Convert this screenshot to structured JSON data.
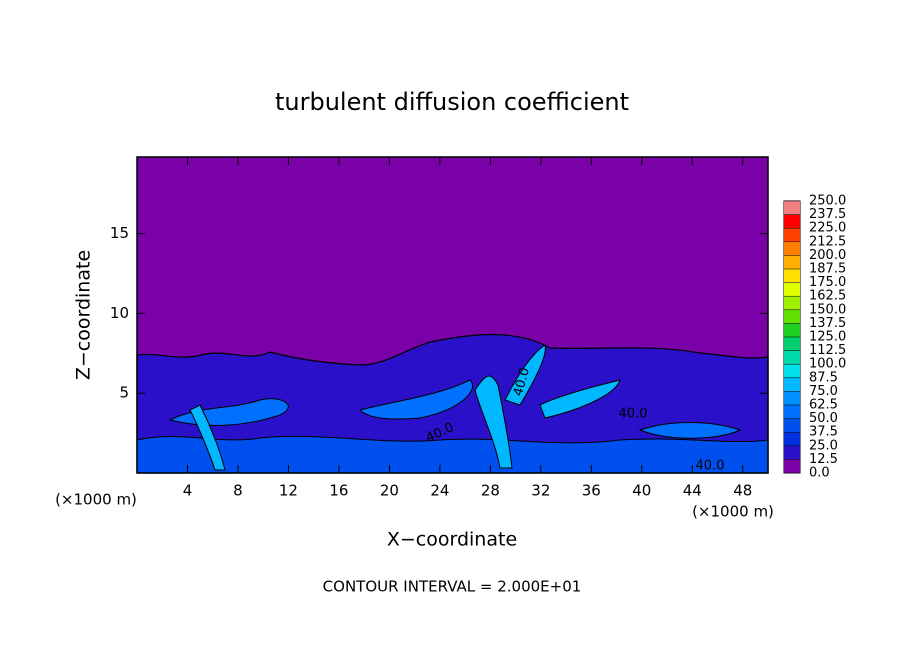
{
  "chart_data": {
    "type": "contour",
    "title": "turbulent diffusion coefficient",
    "xlabel": "X−coordinate",
    "ylabel": "Z−coordinate",
    "xunit": "(×1000 m)",
    "yunit": "(×1000 m)",
    "note": "CONTOUR INTERVAL = 2.000E+01",
    "xlim": [
      0,
      50
    ],
    "ylim": [
      0,
      19.8
    ],
    "xticks": [
      4,
      8,
      12,
      16,
      20,
      24,
      28,
      32,
      36,
      40,
      44,
      48
    ],
    "yticks": [
      5,
      10,
      15
    ],
    "contour_labels": [
      "40.0",
      "40.0",
      "40.0",
      "40.0"
    ],
    "colorbar": {
      "levels": [
        {
          "value": 0,
          "label": "0.0"
        },
        12.5,
        {
          "value": 25,
          "label": "25.0"
        },
        37.5,
        {
          "value": 50,
          "label": "50.0"
        },
        62.5,
        {
          "value": 75,
          "label": "75.0"
        },
        87.5,
        {
          "value": 100,
          "label": "100.0"
        },
        112.5,
        {
          "value": 125,
          "label": "125.0"
        },
        137.5,
        {
          "value": 150,
          "label": "150.0"
        },
        162.5,
        {
          "value": 175,
          "label": "175.0"
        },
        187.5,
        {
          "value": 200,
          "label": "200.0"
        },
        212.5,
        {
          "value": 225,
          "label": "225.0"
        },
        237.5,
        {
          "value": 250,
          "label": "250.0"
        }
      ],
      "colors": [
        "#7a00a8",
        "#2a10c8",
        "#0030e0",
        "#0050f0",
        "#0070ff",
        "#0090ff",
        "#00b8ff",
        "#00e0e8",
        "#00d8a8",
        "#00d070",
        "#20d020",
        "#60e000",
        "#a0f000",
        "#e0ff00",
        "#ffe000",
        "#ffb000",
        "#ff8000",
        "#ff4000",
        "#ff0000",
        "#f08080"
      ]
    }
  }
}
